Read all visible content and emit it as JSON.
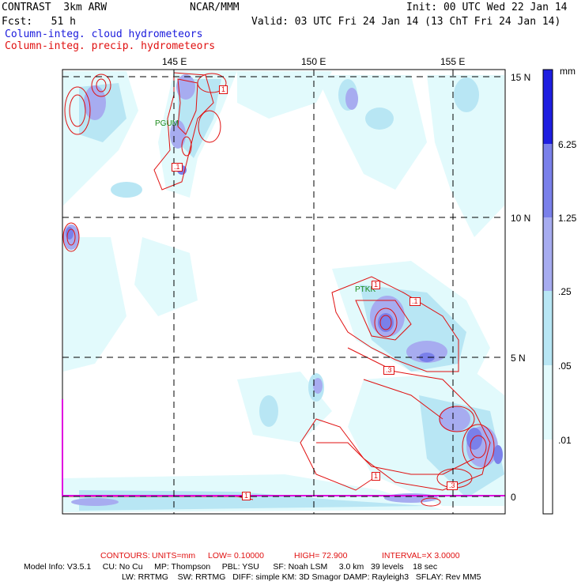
{
  "header": {
    "model": "CONTRAST  3km ARW",
    "center": "NCAR/MMM",
    "init": "Init: 00 UTC Wed 22 Jan 14",
    "fcst": "Fcst:   51 h",
    "valid": "Valid: 03 UTC Fri 24 Jan 14 (13 ChT Fri 24 Jan 14)",
    "field1": "Column-integ. cloud hydrometeors",
    "field2": "Column-integ. precip. hydrometeors"
  },
  "map": {
    "lon_labels": [
      "145 E",
      "150 E",
      "155 E"
    ],
    "lat_labels": [
      "15 N",
      "10 N",
      "5 N",
      "0"
    ],
    "station_labels": [
      "PGUM",
      "PTKK"
    ],
    "contour_labels": [
      "1",
      "1",
      ".1",
      ".1",
      "1",
      ".3",
      "1",
      ".3"
    ]
  },
  "colorbar": {
    "unit": "mm",
    "levels": [
      "6.25",
      "1.25",
      ".25",
      ".05",
      ".01"
    ],
    "colors": [
      "#ffffff",
      "#e2fafc",
      "#b8e6f4",
      "#a7acf0",
      "#7a80ea",
      "#4b53ea",
      "#1e1ee0"
    ]
  },
  "footer": {
    "contours_label": "CONTOURS:",
    "units": "UNITS=mm",
    "low": "LOW= 0.10000",
    "high": "HIGH= 72.900",
    "interval": "INTERVAL=X 3.0000",
    "model_info": "Model Info: V3.5.1     CU: No Cu     MP: Thompson     PBL: YSU      SF: Noah LSM     3.0 km   39 levels    18 sec",
    "model_info2": "LW: RRTMG    SW: RRTMG   DIFF: simple KM: 3D Smagor DAMP: Rayleigh3   SFLAY: Rev MM5"
  },
  "colors": {
    "cloud": "#5a60e6",
    "precip": "#e01010",
    "magenta": "#e000e0"
  }
}
